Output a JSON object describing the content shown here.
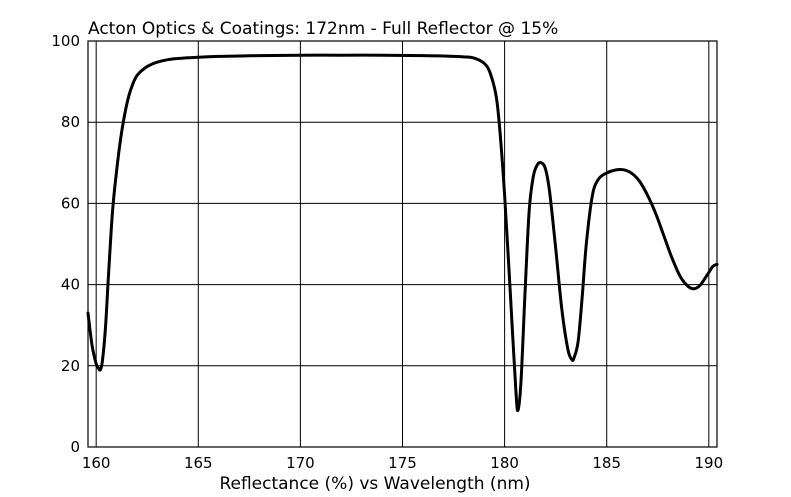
{
  "chart_data": {
    "type": "line",
    "title": "Acton Optics & Coatings:  172nm - Full Reflector @ 15%",
    "xlabel": "Reflectance (%)  vs  Wavelength (nm)",
    "ylabel": "",
    "xlim": [
      159.6,
      190.4
    ],
    "ylim": [
      0,
      100
    ],
    "xticks": [
      160,
      165,
      170,
      175,
      180,
      185,
      190
    ],
    "xtick_labels": [
      "160",
      "165",
      "170",
      "175",
      "180",
      "185",
      "190"
    ],
    "yticks": [
      0,
      20,
      40,
      60,
      80,
      100
    ],
    "ytick_labels": [
      "0",
      "20",
      "40",
      "60",
      "80",
      "100"
    ],
    "grid": true,
    "series": [
      {
        "x": [
          159.6,
          159.8,
          160.0,
          160.1,
          160.2,
          160.3,
          160.45,
          160.6,
          160.8,
          161.0,
          161.2,
          161.4,
          161.6,
          161.8,
          162.0,
          162.3,
          162.6,
          163.0,
          163.5,
          164.0,
          165.0,
          166.0,
          167.0,
          168.0,
          170.0,
          172.0,
          174.0,
          176.0,
          177.0,
          178.0,
          178.5,
          179.0,
          179.3,
          179.6,
          179.8,
          180.0,
          180.2,
          180.4,
          180.55,
          180.65,
          180.8,
          181.0,
          181.2,
          181.4,
          181.6,
          181.8,
          182.0,
          182.2,
          182.5,
          182.8,
          183.1,
          183.3,
          183.4,
          183.6,
          183.8,
          184.0,
          184.3,
          184.6,
          185.0,
          185.4,
          185.8,
          186.2,
          186.6,
          187.0,
          187.4,
          187.8,
          188.2,
          188.6,
          189.0,
          189.3,
          189.6,
          190.0,
          190.2,
          190.4
        ],
        "values": [
          33,
          25,
          20.5,
          19.5,
          19,
          21,
          29,
          42,
          58,
          68,
          76,
          82,
          86.5,
          89.5,
          91.5,
          93,
          94,
          94.8,
          95.4,
          95.7,
          96.0,
          96.2,
          96.3,
          96.4,
          96.5,
          96.5,
          96.5,
          96.4,
          96.3,
          96.1,
          95.8,
          94.5,
          92,
          86,
          76,
          62,
          45,
          27,
          14,
          9,
          16,
          38,
          58,
          66.5,
          69.5,
          70,
          68.5,
          63,
          49,
          34,
          24,
          21.5,
          22,
          26,
          37,
          50,
          62,
          66,
          67.5,
          68.2,
          68.3,
          67.5,
          65.5,
          62,
          57.5,
          52,
          46.5,
          42,
          39.5,
          39,
          40,
          43,
          44.5,
          45
        ]
      }
    ]
  }
}
